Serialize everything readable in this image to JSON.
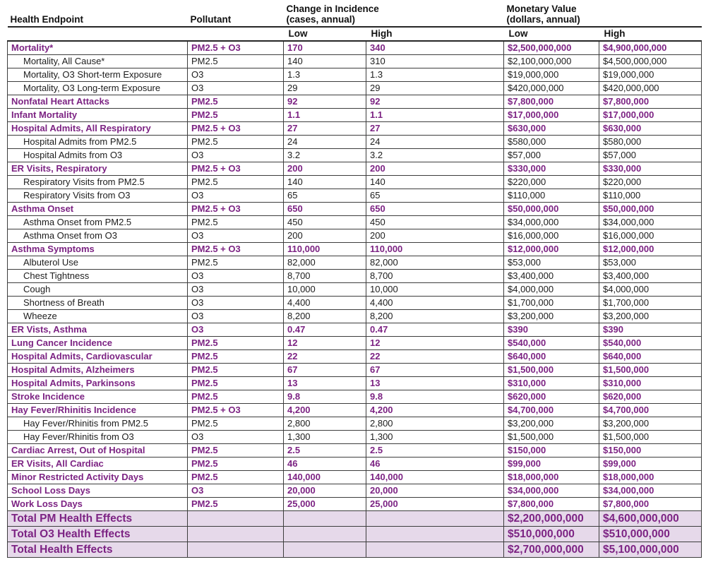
{
  "header": {
    "col_health_endpoint": "Health Endpoint",
    "col_pollutant": "Pollutant",
    "group_incidence_line1": "Change in Incidence",
    "group_incidence_line2": "(cases, annual)",
    "group_monetary_line1": "Monetary Value",
    "group_monetary_line2": "(dollars, annual)",
    "sub_incidence_low": "Low",
    "sub_incidence_high": "High",
    "sub_monetary_low": "Low",
    "sub_monetary_high": "High"
  },
  "colors": {
    "category_text": "#7c2383",
    "body_text": "#1c1c1c",
    "total_row_background": "#e6d9ea",
    "grid_border": "#3d3d3d"
  },
  "rows": [
    {
      "endpoint": "Mortality*",
      "pollutant": "PM2.5 + O3",
      "inc_low": "170",
      "inc_high": "340",
      "mon_low": "$2,500,000,000",
      "mon_high": "$4,900,000,000",
      "style": "category"
    },
    {
      "endpoint": "Mortality, All Cause*",
      "pollutant": "PM2.5",
      "inc_low": "140",
      "inc_high": "310",
      "mon_low": "$2,100,000,000",
      "mon_high": "$4,500,000,000",
      "style": "sub"
    },
    {
      "endpoint": "Mortality, O3 Short-term Exposure",
      "pollutant": "O3",
      "inc_low": "1.3",
      "inc_high": "1.3",
      "mon_low": "$19,000,000",
      "mon_high": "$19,000,000",
      "style": "sub"
    },
    {
      "endpoint": "Mortality, O3 Long-term Exposure",
      "pollutant": "O3",
      "inc_low": "29",
      "inc_high": "29",
      "mon_low": "$420,000,000",
      "mon_high": "$420,000,000",
      "style": "sub"
    },
    {
      "endpoint": "Nonfatal Heart Attacks",
      "pollutant": "PM2.5",
      "inc_low": "92",
      "inc_high": "92",
      "mon_low": "$7,800,000",
      "mon_high": "$7,800,000",
      "style": "category"
    },
    {
      "endpoint": "Infant Mortality",
      "pollutant": "PM2.5",
      "inc_low": "1.1",
      "inc_high": "1.1",
      "mon_low": "$17,000,000",
      "mon_high": "$17,000,000",
      "style": "category"
    },
    {
      "endpoint": "Hospital Admits, All Respiratory",
      "pollutant": "PM2.5 + O3",
      "inc_low": "27",
      "inc_high": "27",
      "mon_low": "$630,000",
      "mon_high": "$630,000",
      "style": "category"
    },
    {
      "endpoint": "Hospital Admits from PM2.5",
      "pollutant": "PM2.5",
      "inc_low": "24",
      "inc_high": "24",
      "mon_low": "$580,000",
      "mon_high": "$580,000",
      "style": "sub"
    },
    {
      "endpoint": "Hospital Admits from O3",
      "pollutant": "O3",
      "inc_low": "3.2",
      "inc_high": "3.2",
      "mon_low": "$57,000",
      "mon_high": "$57,000",
      "style": "sub"
    },
    {
      "endpoint": "ER Visits, Respiratory",
      "pollutant": "PM2.5 + O3",
      "inc_low": "200",
      "inc_high": "200",
      "mon_low": "$330,000",
      "mon_high": "$330,000",
      "style": "category"
    },
    {
      "endpoint": "Respiratory Visits from PM2.5",
      "pollutant": "PM2.5",
      "inc_low": "140",
      "inc_high": "140",
      "mon_low": "$220,000",
      "mon_high": "$220,000",
      "style": "sub"
    },
    {
      "endpoint": "Respiratory Visits from O3",
      "pollutant": "O3",
      "inc_low": "65",
      "inc_high": "65",
      "mon_low": "$110,000",
      "mon_high": "$110,000",
      "style": "sub"
    },
    {
      "endpoint": "Asthma Onset",
      "pollutant": "PM2.5 + O3",
      "inc_low": "650",
      "inc_high": "650",
      "mon_low": "$50,000,000",
      "mon_high": "$50,000,000",
      "style": "category"
    },
    {
      "endpoint": "Asthma Onset from PM2.5",
      "pollutant": "PM2.5",
      "inc_low": "450",
      "inc_high": "450",
      "mon_low": "$34,000,000",
      "mon_high": "$34,000,000",
      "style": "sub"
    },
    {
      "endpoint": "Asthma Onset from O3",
      "pollutant": "O3",
      "inc_low": "200",
      "inc_high": "200",
      "mon_low": "$16,000,000",
      "mon_high": "$16,000,000",
      "style": "sub"
    },
    {
      "endpoint": "Asthma Symptoms",
      "pollutant": "PM2.5 + O3",
      "inc_low": "110,000",
      "inc_high": "110,000",
      "mon_low": "$12,000,000",
      "mon_high": "$12,000,000",
      "style": "category"
    },
    {
      "endpoint": "Albuterol Use",
      "pollutant": "PM2.5",
      "inc_low": "82,000",
      "inc_high": "82,000",
      "mon_low": "$53,000",
      "mon_high": "$53,000",
      "style": "sub"
    },
    {
      "endpoint": "Chest Tightness",
      "pollutant": "O3",
      "inc_low": "8,700",
      "inc_high": "8,700",
      "mon_low": "$3,400,000",
      "mon_high": "$3,400,000",
      "style": "sub"
    },
    {
      "endpoint": "Cough",
      "pollutant": "O3",
      "inc_low": "10,000",
      "inc_high": "10,000",
      "mon_low": "$4,000,000",
      "mon_high": "$4,000,000",
      "style": "sub"
    },
    {
      "endpoint": "Shortness of Breath",
      "pollutant": "O3",
      "inc_low": "4,400",
      "inc_high": "4,400",
      "mon_low": "$1,700,000",
      "mon_high": "$1,700,000",
      "style": "sub"
    },
    {
      "endpoint": "Wheeze",
      "pollutant": "O3",
      "inc_low": "8,200",
      "inc_high": "8,200",
      "mon_low": "$3,200,000",
      "mon_high": "$3,200,000",
      "style": "sub"
    },
    {
      "endpoint": "ER Vists, Asthma",
      "pollutant": "O3",
      "inc_low": "0.47",
      "inc_high": "0.47",
      "mon_low": "$390",
      "mon_high": "$390",
      "style": "category"
    },
    {
      "endpoint": "Lung Cancer Incidence",
      "pollutant": "PM2.5",
      "inc_low": "12",
      "inc_high": "12",
      "mon_low": "$540,000",
      "mon_high": "$540,000",
      "style": "category"
    },
    {
      "endpoint": "Hospital Admits, Cardiovascular",
      "pollutant": "PM2.5",
      "inc_low": "22",
      "inc_high": "22",
      "mon_low": "$640,000",
      "mon_high": "$640,000",
      "style": "category"
    },
    {
      "endpoint": "Hospital Admits, Alzheimers",
      "pollutant": "PM2.5",
      "inc_low": "67",
      "inc_high": "67",
      "mon_low": "$1,500,000",
      "mon_high": "$1,500,000",
      "style": "category"
    },
    {
      "endpoint": "Hospital Admits, Parkinsons",
      "pollutant": "PM2.5",
      "inc_low": "13",
      "inc_high": "13",
      "mon_low": "$310,000",
      "mon_high": "$310,000",
      "style": "category"
    },
    {
      "endpoint": "Stroke Incidence",
      "pollutant": "PM2.5",
      "inc_low": "9.8",
      "inc_high": "9.8",
      "mon_low": "$620,000",
      "mon_high": "$620,000",
      "style": "category"
    },
    {
      "endpoint": "Hay Fever/Rhinitis Incidence",
      "pollutant": "PM2.5 + O3",
      "inc_low": "4,200",
      "inc_high": "4,200",
      "mon_low": "$4,700,000",
      "mon_high": "$4,700,000",
      "style": "category"
    },
    {
      "endpoint": "Hay Fever/Rhinitis from PM2.5",
      "pollutant": "PM2.5",
      "inc_low": "2,800",
      "inc_high": "2,800",
      "mon_low": "$3,200,000",
      "mon_high": "$3,200,000",
      "style": "sub"
    },
    {
      "endpoint": "Hay Fever/Rhinitis from O3",
      "pollutant": "O3",
      "inc_low": "1,300",
      "inc_high": "1,300",
      "mon_low": "$1,500,000",
      "mon_high": "$1,500,000",
      "style": "sub"
    },
    {
      "endpoint": "Cardiac Arrest, Out of Hospital",
      "pollutant": "PM2.5",
      "inc_low": "2.5",
      "inc_high": "2.5",
      "mon_low": "$150,000",
      "mon_high": "$150,000",
      "style": "category"
    },
    {
      "endpoint": "ER Visits, All Cardiac",
      "pollutant": "PM2.5",
      "inc_low": "46",
      "inc_high": "46",
      "mon_low": "$99,000",
      "mon_high": "$99,000",
      "style": "category"
    },
    {
      "endpoint": "Minor Restricted Activity Days",
      "pollutant": "PM2.5",
      "inc_low": "140,000",
      "inc_high": "140,000",
      "mon_low": "$18,000,000",
      "mon_high": "$18,000,000",
      "style": "category"
    },
    {
      "endpoint": "School Loss Days",
      "pollutant": "O3",
      "inc_low": "20,000",
      "inc_high": "20,000",
      "mon_low": "$34,000,000",
      "mon_high": "$34,000,000",
      "style": "category"
    },
    {
      "endpoint": "Work Loss Days",
      "pollutant": "PM2.5",
      "inc_low": "25,000",
      "inc_high": "25,000",
      "mon_low": "$7,800,000",
      "mon_high": "$7,800,000",
      "style": "category"
    }
  ],
  "totals": [
    {
      "endpoint": "Total PM Health Effects",
      "pollutant": "",
      "inc_low": "",
      "inc_high": "",
      "mon_low": "$2,200,000,000",
      "mon_high": "$4,600,000,000"
    },
    {
      "endpoint": "Total O3 Health Effects",
      "pollutant": "",
      "inc_low": "",
      "inc_high": "",
      "mon_low": "$510,000,000",
      "mon_high": "$510,000,000"
    },
    {
      "endpoint": "Total Health Effects",
      "pollutant": "",
      "inc_low": "",
      "inc_high": "",
      "mon_low": "$2,700,000,000",
      "mon_high": "$5,100,000,000"
    }
  ]
}
